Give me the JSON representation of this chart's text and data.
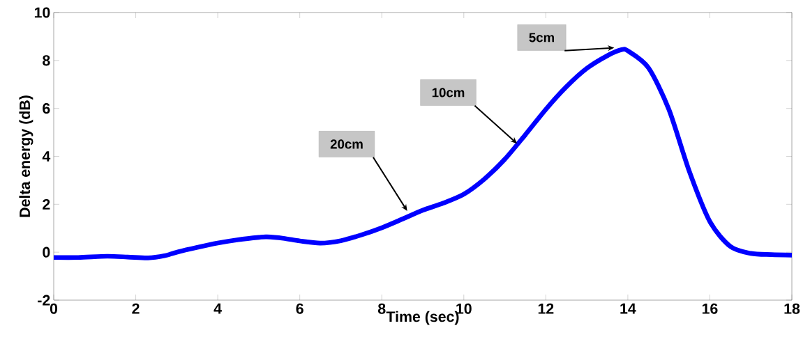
{
  "chart_data": {
    "type": "line",
    "xlabel": "Time (sec)",
    "ylabel": "Delta energy (dB)",
    "xlim": [
      0,
      18
    ],
    "ylim": [
      -2,
      10
    ],
    "xticks": [
      0,
      2,
      4,
      6,
      8,
      10,
      12,
      14,
      16,
      18
    ],
    "yticks": [
      -2,
      0,
      2,
      4,
      6,
      8,
      10
    ],
    "grid": false,
    "marker": "none",
    "line_style": "solid",
    "series": [
      {
        "color": "#0000ff",
        "x": [
          0,
          0.6,
          1.3,
          1.8,
          2.3,
          2.7,
          3,
          3.5,
          4,
          4.5,
          5,
          5.2,
          5.6,
          6,
          6.5,
          7,
          7.5,
          8,
          8.5,
          9,
          9.5,
          10,
          10.5,
          11,
          11.5,
          12,
          12.5,
          13,
          13.5,
          13.85,
          14,
          14.5,
          15,
          15.5,
          16,
          16.5,
          17,
          17.5,
          18
        ],
        "values": [
          -0.22,
          -0.22,
          -0.17,
          -0.2,
          -0.24,
          -0.15,
          0,
          0.2,
          0.38,
          0.52,
          0.62,
          0.64,
          0.58,
          0.47,
          0.38,
          0.48,
          0.72,
          1.02,
          1.38,
          1.75,
          2.05,
          2.42,
          3.05,
          3.88,
          4.9,
          5.96,
          6.9,
          7.67,
          8.2,
          8.45,
          8.4,
          7.7,
          5.96,
          3.37,
          1.28,
          0.24,
          -0.05,
          -0.1,
          -0.12
        ]
      }
    ],
    "annotations": [
      {
        "text": "20cm",
        "x": 8.62,
        "y": 1.72
      },
      {
        "text": "10cm",
        "x": 11.3,
        "y": 4.53
      },
      {
        "text": "5cm",
        "x": 13.67,
        "y": 8.53
      }
    ]
  }
}
